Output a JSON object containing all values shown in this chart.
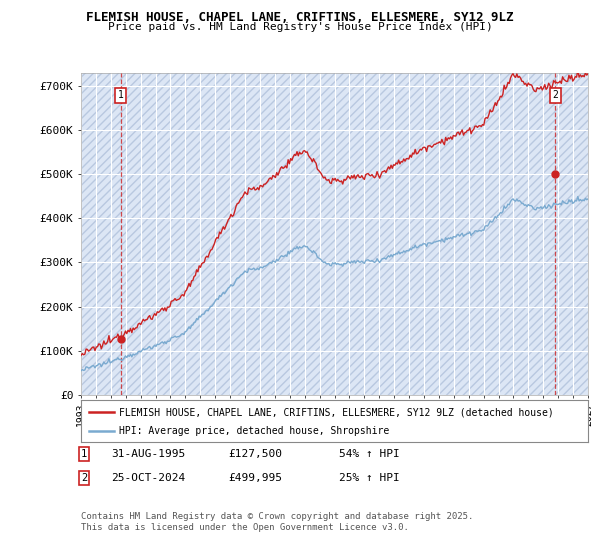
{
  "title_line1": "FLEMISH HOUSE, CHAPEL LANE, CRIFTINS, ELLESMERE, SY12 9LZ",
  "title_line2": "Price paid vs. HM Land Registry's House Price Index (HPI)",
  "ylabel_ticks": [
    "£0",
    "£100K",
    "£200K",
    "£300K",
    "£400K",
    "£500K",
    "£600K",
    "£700K"
  ],
  "ytick_values": [
    0,
    100000,
    200000,
    300000,
    400000,
    500000,
    600000,
    700000
  ],
  "ylim": [
    0,
    730000
  ],
  "xlim_start": 1993.0,
  "xlim_end": 2027.0,
  "hpi_color": "#7aaad0",
  "price_color": "#cc2222",
  "bg_color": "#dce6f5",
  "grid_color": "#ffffff",
  "sale1_year": 1995.67,
  "sale1_price": 127500,
  "sale2_year": 2024.81,
  "sale2_price": 499995,
  "legend_label1": "FLEMISH HOUSE, CHAPEL LANE, CRIFTINS, ELLESMERE, SY12 9LZ (detached house)",
  "legend_label2": "HPI: Average price, detached house, Shropshire",
  "footer": "Contains HM Land Registry data © Crown copyright and database right 2025.\nThis data is licensed under the Open Government Licence v3.0."
}
